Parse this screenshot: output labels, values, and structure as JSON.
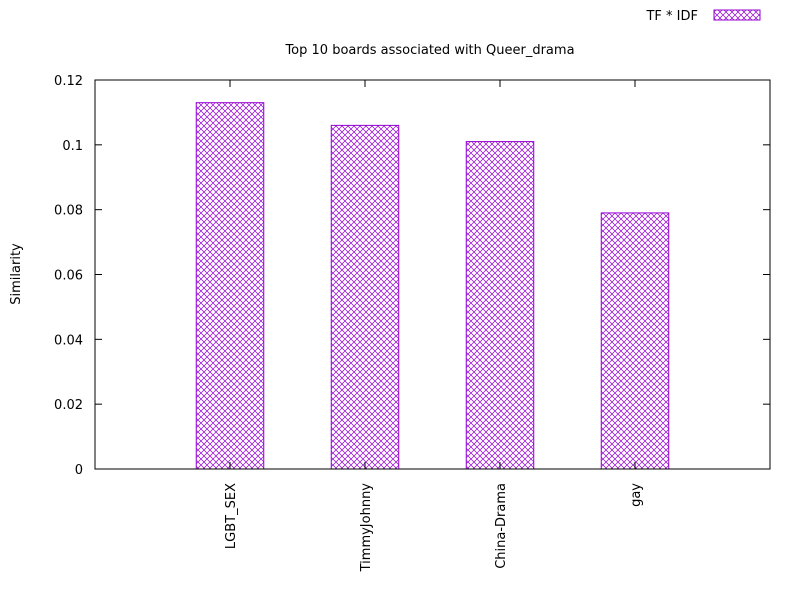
{
  "chart_data": {
    "type": "bar",
    "title": "Top 10 boards associated with Queer_drama",
    "xlabel": "",
    "ylabel": "Similarity",
    "categories": [
      "LGBT_SEX",
      "TimmyJohnny",
      "China-Drama",
      "gay"
    ],
    "series": [
      {
        "name": "TF * IDF",
        "values": [
          0.113,
          0.106,
          0.101,
          0.079
        ]
      }
    ],
    "ylim": [
      0,
      0.12
    ],
    "yticks": [
      "0",
      "0.02",
      "0.04",
      "0.06",
      "0.08",
      "0.1",
      "0.12"
    ],
    "grid": false,
    "legend_position": "top-right",
    "bar_color": "#9400d3",
    "bar_pattern": "crosshatch"
  }
}
